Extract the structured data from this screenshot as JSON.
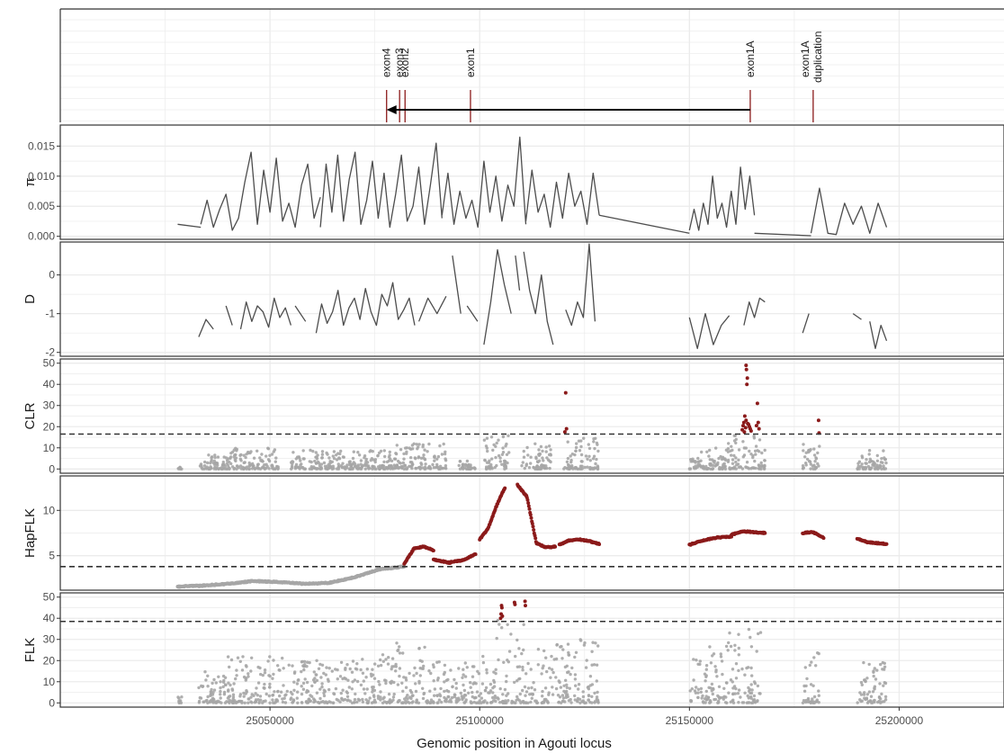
{
  "chart_data": {
    "type": "multi-panel genome track",
    "xlabel": "Genomic position in Agouti locus",
    "xlim": [
      25000000,
      25225000
    ],
    "x_ticks": [
      25050000,
      25100000,
      25150000,
      25200000
    ],
    "x_tick_labels": [
      "25050000",
      "25100000",
      "25150000",
      "25200000"
    ],
    "colors": {
      "line": "#4d4d4d",
      "significant": "#8b1a1a",
      "background_points": "#a6a6a6",
      "gene_marker": "#8b1a1a",
      "grid": "#ebebeb",
      "threshold": "#333333"
    },
    "gene_track": {
      "features": [
        {
          "label": "exon4",
          "position": 25077800
        },
        {
          "label": "exon3",
          "position": 25080900
        },
        {
          "label": "exon2",
          "position": 25082200
        },
        {
          "label": "exon1",
          "position": 25097800
        },
        {
          "label": "exon1A",
          "position": 25164500
        },
        {
          "label": "exon1A",
          "sublabel": "duplication",
          "position": 25179500
        }
      ],
      "transcript_arrow": {
        "from": 25164500,
        "to": 25077800,
        "direction": "reverse"
      }
    },
    "panels": [
      {
        "ylabel": "π",
        "type": "line",
        "ylim": [
          -0.0005,
          0.0185
        ],
        "y_ticks": [
          0,
          0.005,
          0.01,
          0.015
        ],
        "y_tick_labels": [
          "0.000",
          "0.005",
          "0.010",
          "0.015"
        ],
        "segments": [
          {
            "x_range": [
              25028000,
              25033500
            ],
            "levels": [
              0.002,
              0.0015
            ]
          },
          {
            "x_range": [
              25033500,
              25062000
            ],
            "levels": [
              0.002,
              0.006,
              0.0015,
              0.0045,
              0.007,
              0.001,
              0.003,
              0.009,
              0.014,
              0.002,
              0.011,
              0.004,
              0.013,
              0.0025,
              0.0055,
              0.0015,
              0.0085,
              0.012,
              0.003,
              0.0065
            ]
          },
          {
            "x_range": [
              25062000,
              25091000
            ],
            "levels": [
              0.0015,
              0.012,
              0.004,
              0.0135,
              0.0025,
              0.0095,
              0.014,
              0.002,
              0.006,
              0.0125,
              0.003,
              0.0105,
              0.0015,
              0.007,
              0.0135,
              0.0025,
              0.005,
              0.0115,
              0.002,
              0.0085,
              0.0155,
              0.003
            ]
          },
          {
            "x_range": [
              25091000,
              25111000
            ],
            "levels": [
              0.0035,
              0.0105,
              0.002,
              0.0075,
              0.003,
              0.006,
              0.0015,
              0.0125,
              0.004,
              0.01,
              0.0025,
              0.0085,
              0.005,
              0.0165,
              0.002
            ]
          },
          {
            "x_range": [
              25111000,
              25128500
            ],
            "levels": [
              0.0025,
              0.011,
              0.004,
              0.007,
              0.0015,
              0.009,
              0.003,
              0.0105,
              0.005,
              0.0075,
              0.002,
              0.0105,
              0.0035
            ]
          },
          {
            "x_range": [
              25128500,
              25150000
            ],
            "levels": [
              0.0035,
              0.0005
            ]
          },
          {
            "x_range": [
              25150000,
              25165500
            ],
            "levels": [
              0.001,
              0.0045,
              0.001,
              0.0055,
              0.002,
              0.01,
              0.003,
              0.0055,
              0.0015,
              0.0075,
              0.002,
              0.0115,
              0.0045,
              0.01,
              0.0035
            ]
          },
          {
            "x_range": [
              25165500,
              25179000
            ],
            "levels": [
              0.0005,
              0.0001
            ]
          },
          {
            "x_range": [
              25179000,
              25197000
            ],
            "levels": [
              0.0005,
              0.008,
              0.0005,
              0.0003,
              0.0055,
              0.002,
              0.005,
              0.0005,
              0.0055,
              0.0015
            ]
          }
        ]
      },
      {
        "ylabel": "D",
        "type": "line",
        "ylim": [
          -2.1,
          0.85
        ],
        "y_ticks": [
          0,
          -1,
          -2
        ],
        "y_tick_labels": [
          "0",
          "-1",
          "-2"
        ],
        "segments": [
          {
            "x_range": [
              25033000,
              25036500
            ],
            "levels": [
              -1.6,
              -1.15,
              -1.4
            ]
          },
          {
            "x_range": [
              25039500,
              25041000
            ],
            "levels": [
              -0.8,
              -1.3
            ]
          },
          {
            "x_range": [
              25043000,
              25055000
            ],
            "levels": [
              -1.4,
              -0.7,
              -1.2,
              -0.8,
              -0.95,
              -1.35,
              -0.6,
              -1.1,
              -0.85,
              -1.3
            ]
          },
          {
            "x_range": [
              25056000,
              25058500
            ],
            "levels": [
              -0.8,
              -1.2
            ]
          },
          {
            "x_range": [
              25061000,
              25084500
            ],
            "levels": [
              -1.5,
              -0.75,
              -1.25,
              -0.95,
              -0.4,
              -1.3,
              -0.85,
              -0.6,
              -1.15,
              -0.35,
              -0.95,
              -1.3,
              -0.5,
              -0.8,
              -0.2,
              -1.15,
              -0.9,
              -0.6,
              -1.3
            ]
          },
          {
            "x_range": [
              25085500,
              25092000
            ],
            "levels": [
              -1.2,
              -0.6,
              -1.0,
              -0.55
            ]
          },
          {
            "x_range": [
              25093500,
              25095500
            ],
            "levels": [
              0.5,
              -1.0
            ]
          },
          {
            "x_range": [
              25097000,
              25099500
            ],
            "levels": [
              -0.8,
              -1.2
            ]
          },
          {
            "x_range": [
              25101000,
              25107500
            ],
            "levels": [
              -1.8,
              -0.7,
              0.65,
              -0.25,
              -1.0
            ]
          },
          {
            "x_range": [
              25108500,
              25109500
            ],
            "levels": [
              0.5,
              -0.4
            ]
          },
          {
            "x_range": [
              25110500,
              25117500
            ],
            "levels": [
              0.6,
              -0.4,
              -1.0,
              0.0,
              -1.2,
              -1.8
            ]
          },
          {
            "x_range": [
              25120500,
              25127500
            ],
            "levels": [
              -0.9,
              -1.3,
              -0.7,
              -1.1,
              0.8,
              -1.2
            ]
          },
          {
            "x_range": [
              25150000,
              25159500
            ],
            "levels": [
              -1.1,
              -1.9,
              -1.0,
              -1.8,
              -1.3,
              -1.05
            ]
          },
          {
            "x_range": [
              25163000,
              25168000
            ],
            "levels": [
              -1.3,
              -0.7,
              -1.1,
              -0.6,
              -0.7
            ]
          },
          {
            "x_range": [
              25177000,
              25178500
            ],
            "levels": [
              -1.5,
              -1.0
            ]
          },
          {
            "x_range": [
              25189000,
              25191000
            ],
            "levels": [
              -1.0,
              -1.15
            ]
          },
          {
            "x_range": [
              25193000,
              25197000
            ],
            "levels": [
              -1.2,
              -1.9,
              -1.3,
              -1.7
            ]
          }
        ]
      },
      {
        "ylabel": "CLR",
        "type": "scatter",
        "ylim": [
          -2,
          52
        ],
        "y_ticks": [
          0,
          10,
          20,
          30,
          40,
          50
        ],
        "y_tick_labels": [
          "0",
          "10",
          "20",
          "30",
          "40",
          "50"
        ],
        "threshold": 16.5,
        "background_clusters": [
          {
            "x_range": [
              25028000,
              25029000
            ],
            "max": 1
          },
          {
            "x_range": [
              25033000,
              25040000
            ],
            "max": 7
          },
          {
            "x_range": [
              25040000,
              25052000
            ],
            "max": 10
          },
          {
            "x_range": [
              25055000,
              25080000
            ],
            "max": 9
          },
          {
            "x_range": [
              25080000,
              25092000
            ],
            "max": 12
          },
          {
            "x_range": [
              25095000,
              25099000
            ],
            "max": 4
          },
          {
            "x_range": [
              25101000,
              25107000
            ],
            "max": 16
          },
          {
            "x_range": [
              25110000,
              25117000
            ],
            "max": 12
          },
          {
            "x_range": [
              25120000,
              25128500
            ],
            "max": 15
          },
          {
            "x_range": [
              25150000,
              25159000
            ],
            "max": 10
          },
          {
            "x_range": [
              25159000,
              25168000
            ],
            "max": 16
          },
          {
            "x_range": [
              25177000,
              25181000
            ],
            "max": 14
          },
          {
            "x_range": [
              25190000,
              25197000
            ],
            "max": 9
          }
        ],
        "significant_points": [
          [
            25120500,
            36
          ],
          [
            25120700,
            19
          ],
          [
            25120300,
            17.5
          ],
          [
            25163500,
            49
          ],
          [
            25163600,
            47
          ],
          [
            25163800,
            43
          ],
          [
            25163700,
            40
          ],
          [
            25163200,
            25
          ],
          [
            25163500,
            23
          ],
          [
            25163000,
            22
          ],
          [
            25163900,
            21.5
          ],
          [
            25164100,
            21
          ],
          [
            25162800,
            20.5
          ],
          [
            25164300,
            20
          ],
          [
            25163400,
            19.5
          ],
          [
            25164500,
            19
          ],
          [
            25162600,
            18.5
          ],
          [
            25164700,
            18
          ],
          [
            25163100,
            17.5
          ],
          [
            25166200,
            31
          ],
          [
            25166400,
            22
          ],
          [
            25166000,
            20.5
          ],
          [
            25166600,
            19
          ],
          [
            25180800,
            23
          ],
          [
            25180900,
            17
          ]
        ]
      },
      {
        "ylabel": "HapFLK",
        "type": "scatter",
        "ylim": [
          1.2,
          13.8
        ],
        "y_ticks": [
          5,
          10
        ],
        "y_tick_labels": [
          "5",
          "10"
        ],
        "threshold": 3.8,
        "trend_segments": [
          {
            "x_range": [
              25028000,
              25082000
            ],
            "values": [
              1.6,
              1.7,
              1.9,
              2.2,
              2.1,
              1.9,
              2.0,
              2.6,
              3.5,
              3.8
            ],
            "significant": false
          },
          {
            "x_range": [
              25082000,
              25089000
            ],
            "values": [
              4.1,
              5.8,
              6.0,
              5.6
            ],
            "significant": true
          },
          {
            "x_range": [
              25089000,
              25093000
            ],
            "values": [
              4.6,
              4.2
            ],
            "significant": true
          },
          {
            "x_range": [
              25093000,
              25099000
            ],
            "values": [
              4.3,
              4.5,
              5.2
            ],
            "significant": true
          },
          {
            "x_range": [
              25100000,
              25106000
            ],
            "values": [
              6.8,
              8.0,
              10.5,
              12.5
            ],
            "significant": true
          },
          {
            "x_range": [
              25109000,
              25118000
            ],
            "values": [
              12.8,
              11.5,
              6.4,
              5.9,
              6.0
            ],
            "significant": true
          },
          {
            "x_range": [
              25119000,
              25128500
            ],
            "values": [
              6.2,
              6.7,
              6.8,
              6.6,
              6.3
            ],
            "significant": true
          },
          {
            "x_range": [
              25150000,
              25160000
            ],
            "values": [
              6.2,
              6.7,
              7.0,
              7.1
            ],
            "significant": true
          },
          {
            "x_range": [
              25160000,
              25168000
            ],
            "values": [
              7.3,
              7.7,
              7.6,
              7.5
            ],
            "significant": true
          },
          {
            "x_range": [
              25177000,
              25182000
            ],
            "values": [
              7.5,
              7.6,
              7.0
            ],
            "significant": true
          },
          {
            "x_range": [
              25190000,
              25197000
            ],
            "values": [
              6.9,
              6.5,
              6.4,
              6.3
            ],
            "significant": true
          }
        ]
      },
      {
        "ylabel": "FLK",
        "type": "scatter",
        "ylim": [
          -2,
          52
        ],
        "y_ticks": [
          0,
          10,
          20,
          30,
          40,
          50
        ],
        "y_tick_labels": [
          "0",
          "10",
          "20",
          "30",
          "40",
          "50"
        ],
        "threshold": 38.5,
        "background_clusters": [
          {
            "x_range": [
              25028000,
              25029000
            ],
            "max": 3
          },
          {
            "x_range": [
              25033000,
              25040000
            ],
            "max": 15
          },
          {
            "x_range": [
              25040000,
              25055000
            ],
            "max": 22
          },
          {
            "x_range": [
              25055000,
              25070000
            ],
            "max": 20
          },
          {
            "x_range": [
              25070000,
              25080000
            ],
            "max": 24
          },
          {
            "x_range": [
              25080000,
              25088000
            ],
            "max": 29
          },
          {
            "x_range": [
              25088000,
              25100000
            ],
            "max": 20
          },
          {
            "x_range": [
              25100000,
              25104000
            ],
            "max": 22
          },
          {
            "x_range": [
              25104000,
              25108000
            ],
            "max": 40
          },
          {
            "x_range": [
              25108000,
              25112000
            ],
            "max": 38
          },
          {
            "x_range": [
              25112000,
              25122000
            ],
            "max": 28
          },
          {
            "x_range": [
              25122000,
              25128500
            ],
            "max": 30
          },
          {
            "x_range": [
              25150000,
              25159000
            ],
            "max": 28
          },
          {
            "x_range": [
              25159000,
              25167000
            ],
            "max": 35
          },
          {
            "x_range": [
              25177000,
              25181000
            ],
            "max": 24
          },
          {
            "x_range": [
              25190000,
              25197000
            ],
            "max": 19
          }
        ],
        "significant_points": [
          [
            25105200,
            46
          ],
          [
            25105300,
            45
          ],
          [
            25105100,
            42
          ],
          [
            25105400,
            41
          ],
          [
            25105000,
            40
          ],
          [
            25108300,
            47.5
          ],
          [
            25108400,
            46.5
          ],
          [
            25110800,
            48
          ],
          [
            25110900,
            46
          ]
        ]
      }
    ]
  }
}
